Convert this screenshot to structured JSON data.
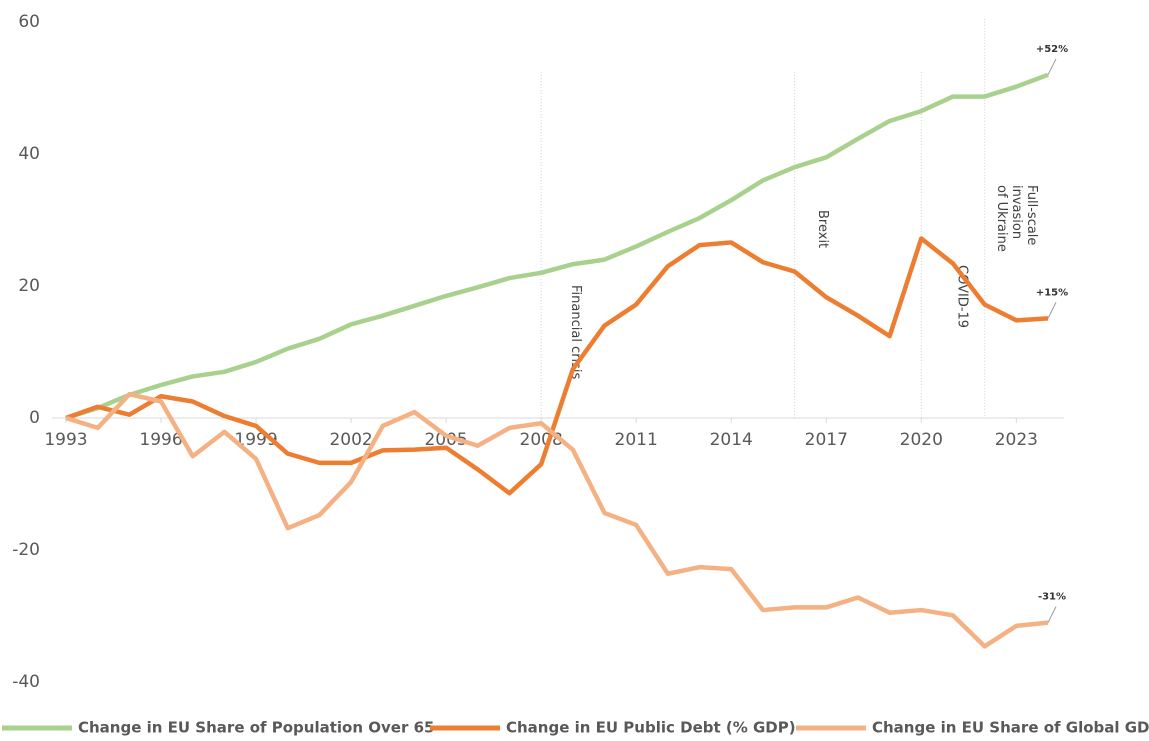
{
  "chart_data": {
    "type": "line",
    "x": [
      1993,
      1994,
      1995,
      1996,
      1997,
      1998,
      1999,
      2000,
      2001,
      2002,
      2003,
      2004,
      2005,
      2006,
      2007,
      2008,
      2009,
      2010,
      2011,
      2012,
      2013,
      2014,
      2015,
      2016,
      2017,
      2018,
      2019,
      2020,
      2021,
      2022,
      2023,
      2024
    ],
    "series": [
      {
        "name": "Change in EU Share of Population Over 65",
        "color": "#a9d18e",
        "end_label": "+52%",
        "values": [
          0,
          1.5,
          3.5,
          5,
          6.3,
          7,
          8.5,
          10.5,
          12,
          14.2,
          15.5,
          17,
          18.5,
          19.8,
          21.2,
          22,
          23.3,
          24,
          26,
          28.2,
          30.3,
          33,
          36,
          38,
          39.5,
          42.3,
          45,
          46.5,
          48.7,
          48.7,
          50.2,
          52
        ]
      },
      {
        "name": "Change in EU Public Debt (% GDP)",
        "color": "#ed7d31",
        "end_label": "+15%",
        "values": [
          0,
          1.7,
          0.5,
          3.3,
          2.5,
          0.3,
          -1.2,
          -5.4,
          -6.8,
          -6.8,
          -4.9,
          -4.8,
          -4.5,
          -7.8,
          -11.4,
          -7,
          7.4,
          14,
          17.2,
          23,
          26.2,
          26.6,
          23.6,
          22.2,
          18.3,
          15.5,
          12.4,
          27.2,
          23.4,
          17.2,
          14.8,
          15.1
        ]
      },
      {
        "name": "Change in EU Share of Global GDP",
        "color": "#f4b183",
        "end_label": "-31%",
        "values": [
          0,
          -1.5,
          3.6,
          2.5,
          -5.8,
          -2.1,
          -6.2,
          -16.7,
          -14.7,
          -9.7,
          -1.2,
          0.9,
          -2.7,
          -4.2,
          -1.5,
          -0.8,
          -4.8,
          -14.4,
          -16.2,
          -23.6,
          -22.6,
          -22.9,
          -29.1,
          -28.7,
          -28.7,
          -27.2,
          -29.5,
          -29.1,
          -29.9,
          -34.6,
          -31.5,
          -31
        ]
      }
    ],
    "events": [
      {
        "x": 2008,
        "label": [
          "Financial crisis"
        ]
      },
      {
        "x": 2016,
        "label": [
          "Brexit"
        ]
      },
      {
        "x": 2020,
        "label": [
          "COVID-19"
        ]
      },
      {
        "x": 2022,
        "label": [
          "Full-scale",
          "invasion",
          "of Ukraine"
        ]
      }
    ],
    "xlim": [
      1993,
      2024
    ],
    "xticks": [
      1993,
      1996,
      1999,
      2002,
      2005,
      2008,
      2011,
      2014,
      2017,
      2020,
      2023
    ],
    "ylim": [
      -40,
      60
    ],
    "yticks": [
      -40,
      -20,
      0,
      20,
      40,
      60
    ]
  }
}
